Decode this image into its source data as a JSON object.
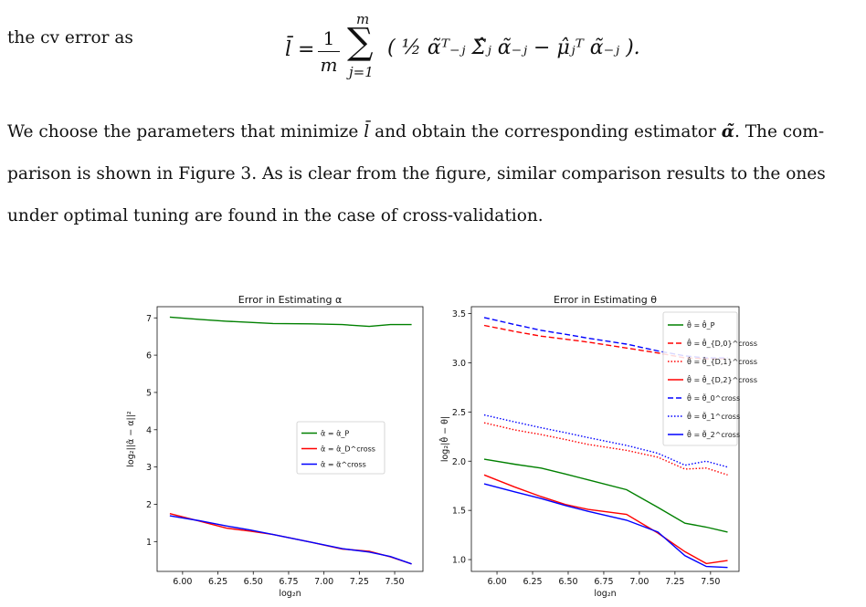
{
  "text": {
    "line1": "the cv error as",
    "para_a": "We choose the parameters that minimize",
    "para_b": "and obtain the corresponding estimator",
    "para_c": ". The com-",
    "line3": "parison is shown in Figure 3. As is clear from the figure, similar comparison results to the ones",
    "line4": "under optimal tuning are found in the case of cross-validation."
  },
  "equation": {
    "lhs": "l̄ =",
    "frac_num": "1",
    "frac_den": "m",
    "sum_top": "m",
    "sum_bottom": "j=1",
    "body": "( ½ α̃ᵀ₋ⱼ Σ̂ⱼ α̃₋ⱼ − μ̂ⱼᵀ α̃₋ⱼ )."
  },
  "chart_data": [
    {
      "type": "line",
      "title": "Error in Estimating α",
      "xlabel": "log₂n",
      "ylabel": "log₂||α̂ − α||²",
      "xlim": [
        5.82,
        7.7
      ],
      "ylim": [
        0.2,
        7.3
      ],
      "xticks": [
        6.0,
        6.25,
        6.5,
        6.75,
        7.0,
        7.25,
        7.5
      ],
      "xtick_labels": [
        "6.00",
        "6.25",
        "6.50",
        "6.75",
        "7.00",
        "7.25",
        "7.50"
      ],
      "yticks": [
        1,
        2,
        3,
        4,
        5,
        6,
        7
      ],
      "legend_position": "center-right",
      "x": [
        5.91,
        6.12,
        6.31,
        6.48,
        6.64,
        6.91,
        7.13,
        7.32,
        7.47,
        7.62
      ],
      "series": [
        {
          "name": "α̂ = α̂_P",
          "color": "#008000",
          "dash": "solid",
          "values": [
            7.02,
            6.96,
            6.91,
            6.88,
            6.85,
            6.84,
            6.82,
            6.77,
            6.82,
            6.82
          ]
        },
        {
          "name": "α̂ = α̂_D^cross",
          "color": "#ff0000",
          "dash": "solid",
          "values": [
            1.75,
            1.55,
            1.36,
            1.28,
            1.19,
            0.98,
            0.8,
            0.74,
            0.59,
            0.4
          ]
        },
        {
          "name": "α̂ = α̃^cross",
          "color": "#0000ff",
          "dash": "solid",
          "values": [
            1.69,
            1.56,
            1.42,
            1.31,
            1.19,
            0.98,
            0.81,
            0.72,
            0.6,
            0.4
          ]
        }
      ]
    },
    {
      "type": "line",
      "title": "Error in Estimating θ",
      "xlabel": "log₂n",
      "ylabel": "log₂|θ̂ − θ|",
      "xlim": [
        5.82,
        7.7
      ],
      "ylim": [
        0.88,
        3.57
      ],
      "xticks": [
        6.0,
        6.25,
        6.5,
        6.75,
        7.0,
        7.25,
        7.5
      ],
      "xtick_labels": [
        "6.00",
        "6.25",
        "6.50",
        "6.75",
        "7.00",
        "7.25",
        "7.50"
      ],
      "yticks": [
        1.0,
        1.5,
        2.0,
        2.5,
        3.0,
        3.5
      ],
      "ytick_labels": [
        "1.0",
        "1.5",
        "2.0",
        "2.5",
        "3.0",
        "3.5"
      ],
      "legend_position": "top-right",
      "x": [
        5.91,
        6.12,
        6.31,
        6.48,
        6.64,
        6.91,
        7.13,
        7.32,
        7.47,
        7.62
      ],
      "series": [
        {
          "name": "θ̂ = θ̂_P",
          "color": "#008000",
          "dash": "solid",
          "values": [
            2.02,
            1.97,
            1.93,
            1.87,
            1.81,
            1.71,
            1.53,
            1.37,
            1.33,
            1.28
          ]
        },
        {
          "name": "θ̂ = θ̂_{D,0}^cross",
          "color": "#ff0000",
          "dash": "dashed",
          "values": [
            3.38,
            3.32,
            3.27,
            3.24,
            3.21,
            3.15,
            3.1,
            3.05,
            3.04,
            3.04
          ]
        },
        {
          "name": "θ̂ = θ̂_{D,1}^cross",
          "color": "#ff0000",
          "dash": "dotted",
          "values": [
            2.39,
            2.32,
            2.27,
            2.22,
            2.17,
            2.11,
            2.04,
            1.92,
            1.93,
            1.86
          ]
        },
        {
          "name": "θ̂ = θ̂_{D,2}^cross",
          "color": "#ff0000",
          "dash": "solid",
          "values": [
            1.86,
            1.74,
            1.64,
            1.56,
            1.51,
            1.46,
            1.27,
            1.08,
            0.96,
            0.99
          ]
        },
        {
          "name": "θ̂ = θ̃_0^cross",
          "color": "#0000ff",
          "dash": "dashed",
          "values": [
            3.46,
            3.39,
            3.33,
            3.29,
            3.25,
            3.19,
            3.12,
            3.07,
            3.05,
            3.05
          ]
        },
        {
          "name": "θ̂ = θ̃_1^cross",
          "color": "#0000ff",
          "dash": "dotted",
          "values": [
            2.47,
            2.4,
            2.34,
            2.29,
            2.24,
            2.16,
            2.08,
            1.96,
            2.0,
            1.94
          ]
        },
        {
          "name": "θ̂ = θ̃_2^cross",
          "color": "#0000ff",
          "dash": "solid",
          "values": [
            1.77,
            1.69,
            1.62,
            1.55,
            1.49,
            1.4,
            1.28,
            1.04,
            0.93,
            0.92
          ]
        }
      ]
    }
  ]
}
